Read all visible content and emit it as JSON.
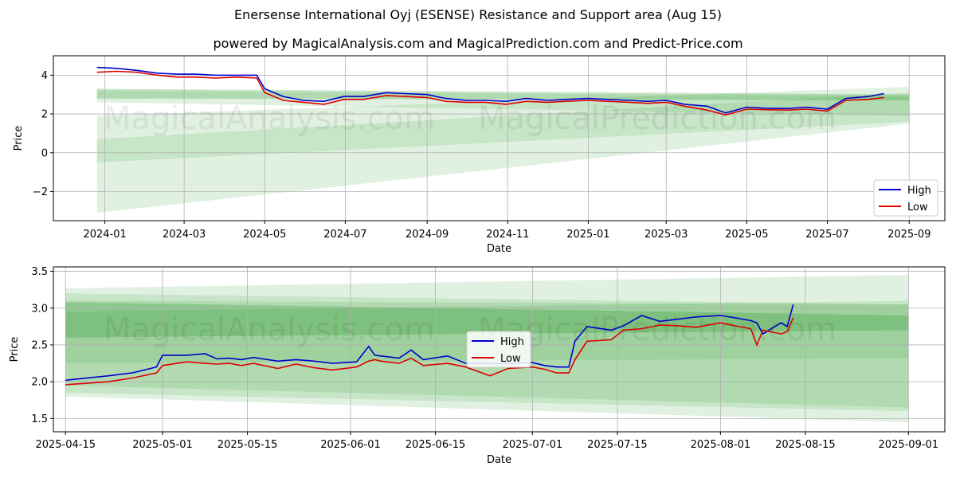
{
  "header": {
    "title": "Enersense International Oyj (ESENSE) Resistance and Support area (Aug 15)",
    "subtitle": "powered by MagicalAnalysis.com and MagicalPrediction.com and Predict-Price.com"
  },
  "watermarks": [
    "MagicalAnalysis.com",
    "MagicalPrediction.com"
  ],
  "colors": {
    "high": "#0000cc",
    "low": "#dd0000",
    "band": "#2e9c2e",
    "grid": "#b0b0b0"
  },
  "chart_data": [
    {
      "type": "line",
      "ylabel": "Price",
      "xlabel": "Date",
      "x_ticks": [
        "2024-01",
        "2024-03",
        "2024-05",
        "2024-07",
        "2024-09",
        "2024-11",
        "2025-01",
        "2025-03",
        "2025-05",
        "2025-07",
        "2025-09"
      ],
      "y_ticks": [
        "−2",
        "0",
        "2",
        "4"
      ],
      "xlim": [
        "2023-11-23",
        "2025-09-28"
      ],
      "ylim": [
        -3.5,
        5.0
      ],
      "grid": true,
      "legend": "bottom-right",
      "series": [
        {
          "name": "High",
          "x": [
            "2023-12-26",
            "2024-01-10",
            "2024-01-25",
            "2024-02-10",
            "2024-02-25",
            "2024-03-10",
            "2024-03-25",
            "2024-04-10",
            "2024-04-25",
            "2024-05-01",
            "2024-05-15",
            "2024-05-30",
            "2024-06-15",
            "2024-06-30",
            "2024-07-15",
            "2024-08-01",
            "2024-08-15",
            "2024-09-01",
            "2024-09-15",
            "2024-10-01",
            "2024-10-15",
            "2024-10-31",
            "2024-11-15",
            "2024-12-01",
            "2024-12-15",
            "2025-01-01",
            "2025-01-15",
            "2025-02-01",
            "2025-02-15",
            "2025-03-01",
            "2025-03-15",
            "2025-04-01",
            "2025-04-15",
            "2025-05-01",
            "2025-05-15",
            "2025-06-01",
            "2025-06-15",
            "2025-07-01",
            "2025-07-15",
            "2025-08-01",
            "2025-08-13"
          ],
          "values": [
            4.4,
            4.35,
            4.25,
            4.1,
            4.05,
            4.05,
            4.0,
            4.0,
            4.0,
            3.3,
            2.9,
            2.7,
            2.65,
            2.9,
            2.9,
            3.1,
            3.05,
            3.0,
            2.8,
            2.7,
            2.7,
            2.65,
            2.8,
            2.7,
            2.75,
            2.8,
            2.75,
            2.7,
            2.65,
            2.7,
            2.5,
            2.4,
            2.05,
            2.35,
            2.3,
            2.28,
            2.35,
            2.25,
            2.8,
            2.9,
            3.05
          ]
        },
        {
          "name": "Low",
          "x": [
            "2023-12-26",
            "2024-01-10",
            "2024-01-25",
            "2024-02-10",
            "2024-02-25",
            "2024-03-10",
            "2024-03-25",
            "2024-04-10",
            "2024-04-25",
            "2024-05-01",
            "2024-05-15",
            "2024-05-30",
            "2024-06-15",
            "2024-06-30",
            "2024-07-15",
            "2024-08-01",
            "2024-08-15",
            "2024-09-01",
            "2024-09-15",
            "2024-10-01",
            "2024-10-15",
            "2024-10-31",
            "2024-11-15",
            "2024-12-01",
            "2024-12-15",
            "2025-01-01",
            "2025-01-15",
            "2025-02-01",
            "2025-02-15",
            "2025-03-01",
            "2025-03-15",
            "2025-04-01",
            "2025-04-15",
            "2025-05-01",
            "2025-05-15",
            "2025-06-01",
            "2025-06-15",
            "2025-07-01",
            "2025-07-15",
            "2025-08-01",
            "2025-08-13"
          ],
          "values": [
            4.15,
            4.2,
            4.15,
            4.0,
            3.9,
            3.9,
            3.85,
            3.9,
            3.85,
            3.1,
            2.7,
            2.6,
            2.5,
            2.75,
            2.75,
            2.95,
            2.9,
            2.85,
            2.65,
            2.6,
            2.6,
            2.5,
            2.65,
            2.6,
            2.65,
            2.7,
            2.65,
            2.6,
            2.55,
            2.6,
            2.4,
            2.2,
            1.95,
            2.25,
            2.22,
            2.2,
            2.25,
            2.15,
            2.7,
            2.75,
            2.85
          ]
        }
      ],
      "bands": [
        {
          "x0": "2023-12-26",
          "x1": "2025-09-01",
          "start": [
            2.8,
            3.3
          ],
          "end": [
            2.7,
            3.0
          ]
        },
        {
          "x0": "2023-12-26",
          "x1": "2025-09-01",
          "start": [
            2.6,
            3.2
          ],
          "end": [
            1.9,
            2.9
          ]
        },
        {
          "x0": "2023-12-26",
          "x1": "2025-09-01",
          "start": [
            -0.5,
            0.7
          ],
          "end": [
            1.6,
            3.1
          ]
        },
        {
          "x0": "2023-12-26",
          "x1": "2025-09-01",
          "start": [
            -3.1,
            1.9
          ],
          "end": [
            1.5,
            3.4
          ]
        }
      ]
    },
    {
      "type": "line",
      "ylabel": "Price",
      "xlabel": "Date",
      "x_ticks": [
        "2025-04-15",
        "2025-05-01",
        "2025-05-15",
        "2025-06-01",
        "2025-06-15",
        "2025-07-01",
        "2025-07-15",
        "2025-08-01",
        "2025-08-15",
        "2025-09-01"
      ],
      "y_ticks": [
        "1.5",
        "2.0",
        "2.5",
        "3.0",
        "3.5"
      ],
      "xlim": [
        "2025-04-13",
        "2025-09-07"
      ],
      "ylim": [
        1.32,
        3.56
      ],
      "grid": true,
      "legend": "center",
      "series": [
        {
          "name": "High",
          "x": [
            "2025-04-15",
            "2025-04-22",
            "2025-04-26",
            "2025-04-30",
            "2025-05-01",
            "2025-05-05",
            "2025-05-08",
            "2025-05-10",
            "2025-05-12",
            "2025-05-14",
            "2025-05-16",
            "2025-05-20",
            "2025-05-23",
            "2025-05-26",
            "2025-05-29",
            "2025-06-02",
            "2025-06-04",
            "2025-06-05",
            "2025-06-06",
            "2025-06-09",
            "2025-06-11",
            "2025-06-13",
            "2025-06-17",
            "2025-06-20",
            "2025-06-24",
            "2025-06-27",
            "2025-07-01",
            "2025-07-03",
            "2025-07-05",
            "2025-07-07",
            "2025-07-08",
            "2025-07-10",
            "2025-07-14",
            "2025-07-16",
            "2025-07-19",
            "2025-07-22",
            "2025-07-25",
            "2025-07-28",
            "2025-08-01",
            "2025-08-04",
            "2025-08-06",
            "2025-08-07",
            "2025-08-08",
            "2025-08-11",
            "2025-08-12",
            "2025-08-13"
          ],
          "values": [
            2.02,
            2.08,
            2.12,
            2.2,
            2.36,
            2.36,
            2.38,
            2.31,
            2.32,
            2.3,
            2.33,
            2.28,
            2.3,
            2.28,
            2.25,
            2.27,
            2.48,
            2.36,
            2.35,
            2.32,
            2.43,
            2.3,
            2.35,
            2.25,
            2.25,
            2.25,
            2.26,
            2.22,
            2.2,
            2.2,
            2.55,
            2.75,
            2.7,
            2.76,
            2.9,
            2.82,
            2.85,
            2.88,
            2.9,
            2.86,
            2.83,
            2.8,
            2.65,
            2.8,
            2.75,
            3.05
          ]
        },
        {
          "name": "Low",
          "x": [
            "2025-04-15",
            "2025-04-22",
            "2025-04-26",
            "2025-04-30",
            "2025-05-01",
            "2025-05-05",
            "2025-05-08",
            "2025-05-10",
            "2025-05-12",
            "2025-05-14",
            "2025-05-16",
            "2025-05-20",
            "2025-05-23",
            "2025-05-26",
            "2025-05-29",
            "2025-06-02",
            "2025-06-04",
            "2025-06-05",
            "2025-06-06",
            "2025-06-09",
            "2025-06-11",
            "2025-06-13",
            "2025-06-17",
            "2025-06-20",
            "2025-06-24",
            "2025-06-27",
            "2025-07-01",
            "2025-07-03",
            "2025-07-05",
            "2025-07-07",
            "2025-07-08",
            "2025-07-10",
            "2025-07-14",
            "2025-07-16",
            "2025-07-19",
            "2025-07-22",
            "2025-07-25",
            "2025-07-28",
            "2025-08-01",
            "2025-08-04",
            "2025-08-06",
            "2025-08-07",
            "2025-08-08",
            "2025-08-11",
            "2025-08-12",
            "2025-08-13"
          ],
          "values": [
            1.96,
            2.0,
            2.05,
            2.12,
            2.22,
            2.27,
            2.25,
            2.24,
            2.25,
            2.22,
            2.25,
            2.18,
            2.24,
            2.19,
            2.16,
            2.2,
            2.28,
            2.3,
            2.28,
            2.25,
            2.32,
            2.22,
            2.25,
            2.2,
            2.08,
            2.18,
            2.2,
            2.17,
            2.12,
            2.12,
            2.3,
            2.55,
            2.57,
            2.7,
            2.72,
            2.77,
            2.76,
            2.74,
            2.8,
            2.75,
            2.72,
            2.5,
            2.7,
            2.65,
            2.68,
            2.87
          ]
        }
      ],
      "bands": [
        {
          "x0": "2025-04-15",
          "x1": "2025-09-01",
          "start": [
            2.6,
            3.08
          ],
          "end": [
            2.7,
            2.9
          ]
        },
        {
          "x0": "2025-04-15",
          "x1": "2025-09-01",
          "start": [
            1.95,
            3.1
          ],
          "end": [
            1.65,
            3.05
          ]
        },
        {
          "x0": "2025-04-15",
          "x1": "2025-09-01",
          "start": [
            2.25,
            2.95
          ],
          "end": [
            2.32,
            3.1
          ]
        },
        {
          "x0": "2025-04-15",
          "x1": "2025-09-01",
          "start": [
            1.85,
            3.2
          ],
          "end": [
            1.6,
            3.05
          ]
        },
        {
          "x0": "2025-04-15",
          "x1": "2025-09-01",
          "start": [
            1.8,
            3.27
          ],
          "end": [
            1.45,
            3.45
          ]
        }
      ]
    }
  ]
}
